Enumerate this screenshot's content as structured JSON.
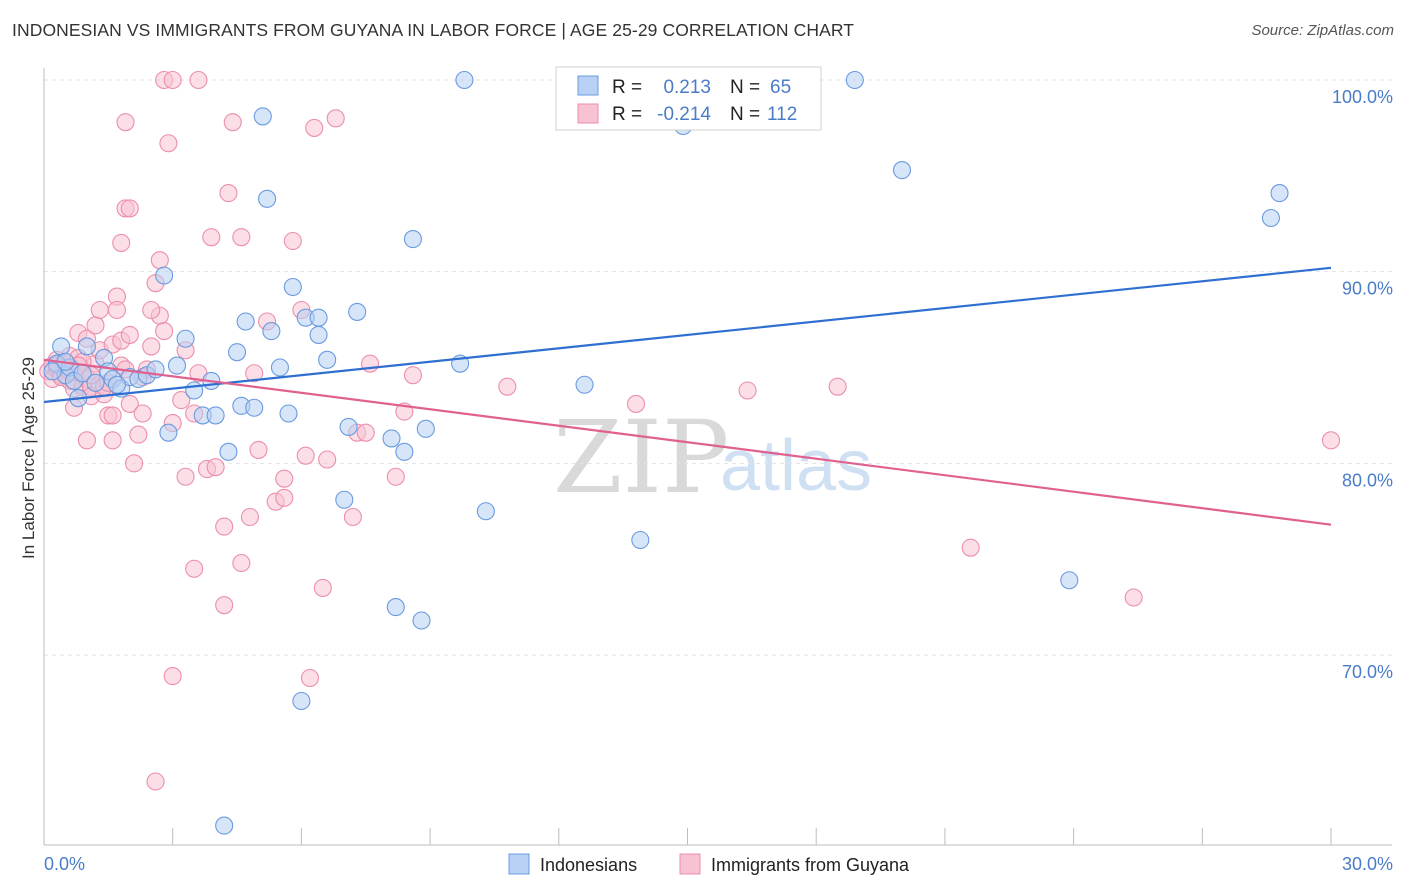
{
  "header": {
    "title": "INDONESIAN VS IMMIGRANTS FROM GUYANA IN LABOR FORCE | AGE 25-29 CORRELATION CHART",
    "source": "Source: ZipAtlas.com"
  },
  "watermark": {
    "zip": "ZIP",
    "atlas": "atlas"
  },
  "stats_box": {
    "rows": [
      {
        "r_label": "R =",
        "r_value": "0.213",
        "n_label": "N =",
        "n_value": "65"
      },
      {
        "r_label": "R =",
        "r_value": "-0.214",
        "n_label": "N =",
        "n_value": "112"
      }
    ]
  },
  "colors": {
    "blue_fill": "#b7d0f3",
    "blue_stroke": "#6a9be0",
    "blue_line": "#2e6fd1",
    "pink_fill": "#f7c3d2",
    "pink_stroke": "#ec8fac",
    "pink_line": "#e0608f",
    "tick_text": "#4a7cc8",
    "grid": "#e2e2e2"
  },
  "chart_data": {
    "type": "scatter",
    "title": "INDONESIAN VS IMMIGRANTS FROM GUYANA IN LABOR FORCE | AGE 25-29 CORRELATION CHART",
    "xlabel": "",
    "ylabel": "In Labor Force | Age 25-29",
    "xlim": [
      0,
      30
    ],
    "ylim": [
      61,
      101
    ],
    "x_tick_labels": [
      "0.0%",
      "30.0%"
    ],
    "y_ticks": [
      70,
      80,
      90,
      100
    ],
    "y_tick_labels": [
      "70.0%",
      "80.0%",
      "90.0%",
      "100.0%"
    ],
    "legend": [
      "Indonesians",
      "Immigrants from Guyana"
    ],
    "series": [
      {
        "name": "Indonesians",
        "r": 0.213,
        "n": 65,
        "trend": {
          "x": [
            0,
            30
          ],
          "y": [
            83.2,
            90.2
          ]
        },
        "points": [
          [
            0.3,
            85.2
          ],
          [
            0.4,
            86.1
          ],
          [
            0.5,
            84.6
          ],
          [
            0.6,
            85.0
          ],
          [
            0.7,
            84.3
          ],
          [
            0.8,
            83.4
          ],
          [
            0.9,
            84.7
          ],
          [
            1.0,
            86.1
          ],
          [
            1.2,
            84.2
          ],
          [
            1.4,
            85.5
          ],
          [
            1.5,
            84.8
          ],
          [
            1.6,
            84.4
          ],
          [
            1.8,
            83.9
          ],
          [
            2.0,
            84.5
          ],
          [
            2.2,
            84.4
          ],
          [
            2.4,
            84.6
          ],
          [
            2.6,
            84.9
          ],
          [
            2.8,
            89.8
          ],
          [
            2.9,
            81.6
          ],
          [
            3.1,
            85.1
          ],
          [
            3.3,
            86.5
          ],
          [
            3.5,
            83.8
          ],
          [
            3.7,
            82.5
          ],
          [
            3.9,
            84.3
          ],
          [
            4.0,
            82.5
          ],
          [
            4.3,
            80.6
          ],
          [
            4.5,
            85.8
          ],
          [
            4.6,
            83.0
          ],
          [
            4.7,
            87.4
          ],
          [
            4.9,
            82.9
          ],
          [
            5.1,
            98.1
          ],
          [
            5.2,
            93.8
          ],
          [
            5.3,
            86.9
          ],
          [
            5.5,
            85.0
          ],
          [
            5.7,
            82.6
          ],
          [
            5.8,
            89.2
          ],
          [
            6.1,
            87.6
          ],
          [
            6.0,
            67.6
          ],
          [
            6.4,
            86.7
          ],
          [
            6.6,
            85.4
          ],
          [
            6.4,
            87.6
          ],
          [
            7.0,
            78.1
          ],
          [
            7.1,
            81.9
          ],
          [
            7.3,
            87.9
          ],
          [
            8.2,
            72.5
          ],
          [
            8.1,
            81.3
          ],
          [
            8.4,
            80.6
          ],
          [
            8.6,
            91.7
          ],
          [
            8.8,
            71.8
          ],
          [
            8.9,
            81.8
          ],
          [
            9.7,
            85.2
          ],
          [
            9.8,
            100.0
          ],
          [
            10.3,
            77.5
          ],
          [
            12.6,
            84.1
          ],
          [
            13.9,
            76.0
          ],
          [
            14.9,
            97.6
          ],
          [
            18.9,
            100.0
          ],
          [
            20.0,
            95.3
          ],
          [
            23.9,
            73.9
          ],
          [
            28.6,
            92.8
          ],
          [
            28.8,
            94.1
          ],
          [
            4.2,
            61.1
          ],
          [
            1.7,
            84.1
          ],
          [
            0.2,
            84.8
          ],
          [
            0.5,
            85.3
          ]
        ]
      },
      {
        "name": "Immigrants from Guyana",
        "r": -0.214,
        "n": 112,
        "trend": {
          "x": [
            0,
            30
          ],
          "y": [
            85.4,
            76.8
          ]
        },
        "points": [
          [
            0.1,
            84.8
          ],
          [
            0.2,
            85.1
          ],
          [
            0.2,
            84.4
          ],
          [
            0.3,
            85.4
          ],
          [
            0.3,
            84.9
          ],
          [
            0.4,
            84.6
          ],
          [
            0.5,
            85.0
          ],
          [
            0.5,
            85.2
          ],
          [
            0.6,
            85.6
          ],
          [
            0.6,
            84.3
          ],
          [
            0.7,
            82.9
          ],
          [
            0.7,
            83.9
          ],
          [
            0.8,
            86.8
          ],
          [
            0.8,
            85.5
          ],
          [
            0.9,
            84.7
          ],
          [
            0.9,
            84.0
          ],
          [
            1.0,
            86.5
          ],
          [
            1.0,
            84.4
          ],
          [
            1.0,
            81.2
          ],
          [
            1.1,
            84.0
          ],
          [
            1.1,
            83.5
          ],
          [
            1.2,
            87.2
          ],
          [
            1.2,
            85.2
          ],
          [
            1.3,
            85.9
          ],
          [
            1.3,
            84.1
          ],
          [
            1.4,
            83.6
          ],
          [
            1.4,
            84.0
          ],
          [
            1.5,
            82.5
          ],
          [
            1.6,
            81.2
          ],
          [
            1.6,
            82.5
          ],
          [
            1.6,
            86.2
          ],
          [
            1.7,
            88.7
          ],
          [
            1.7,
            88.0
          ],
          [
            1.8,
            86.4
          ],
          [
            1.8,
            85.1
          ],
          [
            1.9,
            84.9
          ],
          [
            2.0,
            83.1
          ],
          [
            2.0,
            86.7
          ],
          [
            2.1,
            80.0
          ],
          [
            2.2,
            81.5
          ],
          [
            2.3,
            82.6
          ],
          [
            2.4,
            84.9
          ],
          [
            2.5,
            86.1
          ],
          [
            2.6,
            89.4
          ],
          [
            2.7,
            87.7
          ],
          [
            2.8,
            86.9
          ],
          [
            2.9,
            96.7
          ],
          [
            3.0,
            82.1
          ],
          [
            3.2,
            83.3
          ],
          [
            3.3,
            79.3
          ],
          [
            3.5,
            82.6
          ],
          [
            3.6,
            84.7
          ],
          [
            3.8,
            79.7
          ],
          [
            3.9,
            91.8
          ],
          [
            4.0,
            79.8
          ],
          [
            4.2,
            76.7
          ],
          [
            4.3,
            94.1
          ],
          [
            4.4,
            97.8
          ],
          [
            4.6,
            91.8
          ],
          [
            4.8,
            77.2
          ],
          [
            5.0,
            80.7
          ],
          [
            5.2,
            87.4
          ],
          [
            5.4,
            78.0
          ],
          [
            5.6,
            78.2
          ],
          [
            5.6,
            79.2
          ],
          [
            5.8,
            91.6
          ],
          [
            6.0,
            88.0
          ],
          [
            6.1,
            80.4
          ],
          [
            6.3,
            97.5
          ],
          [
            6.6,
            80.2
          ],
          [
            6.8,
            98.0
          ],
          [
            7.2,
            77.2
          ],
          [
            7.3,
            81.6
          ],
          [
            7.5,
            81.6
          ],
          [
            7.6,
            85.2
          ],
          [
            8.2,
            79.3
          ],
          [
            8.4,
            82.7
          ],
          [
            8.6,
            84.6
          ],
          [
            2.7,
            90.6
          ],
          [
            1.8,
            91.5
          ],
          [
            1.9,
            93.3
          ],
          [
            2.0,
            93.3
          ],
          [
            1.3,
            88.0
          ],
          [
            2.5,
            88.0
          ],
          [
            3.3,
            85.9
          ],
          [
            4.9,
            84.7
          ],
          [
            3.5,
            74.5
          ],
          [
            4.2,
            72.6
          ],
          [
            4.6,
            74.8
          ],
          [
            6.2,
            68.8
          ],
          [
            6.5,
            73.5
          ],
          [
            3.0,
            68.9
          ],
          [
            2.6,
            63.4
          ],
          [
            1.9,
            97.8
          ],
          [
            2.8,
            100.0
          ],
          [
            3.0,
            100.0
          ],
          [
            3.6,
            100.0
          ],
          [
            0.9,
            85.3
          ],
          [
            1.1,
            84.6
          ],
          [
            10.8,
            84.0
          ],
          [
            13.8,
            83.1
          ],
          [
            16.4,
            83.8
          ],
          [
            18.5,
            84.0
          ],
          [
            21.6,
            75.6
          ],
          [
            25.4,
            73.0
          ],
          [
            30.0,
            81.2
          ],
          [
            0.3,
            85.1
          ],
          [
            0.4,
            84.5
          ],
          [
            0.6,
            84.8
          ],
          [
            0.8,
            85.1
          ],
          [
            1.5,
            84.2
          ],
          [
            2.3,
            84.5
          ]
        ]
      }
    ]
  }
}
